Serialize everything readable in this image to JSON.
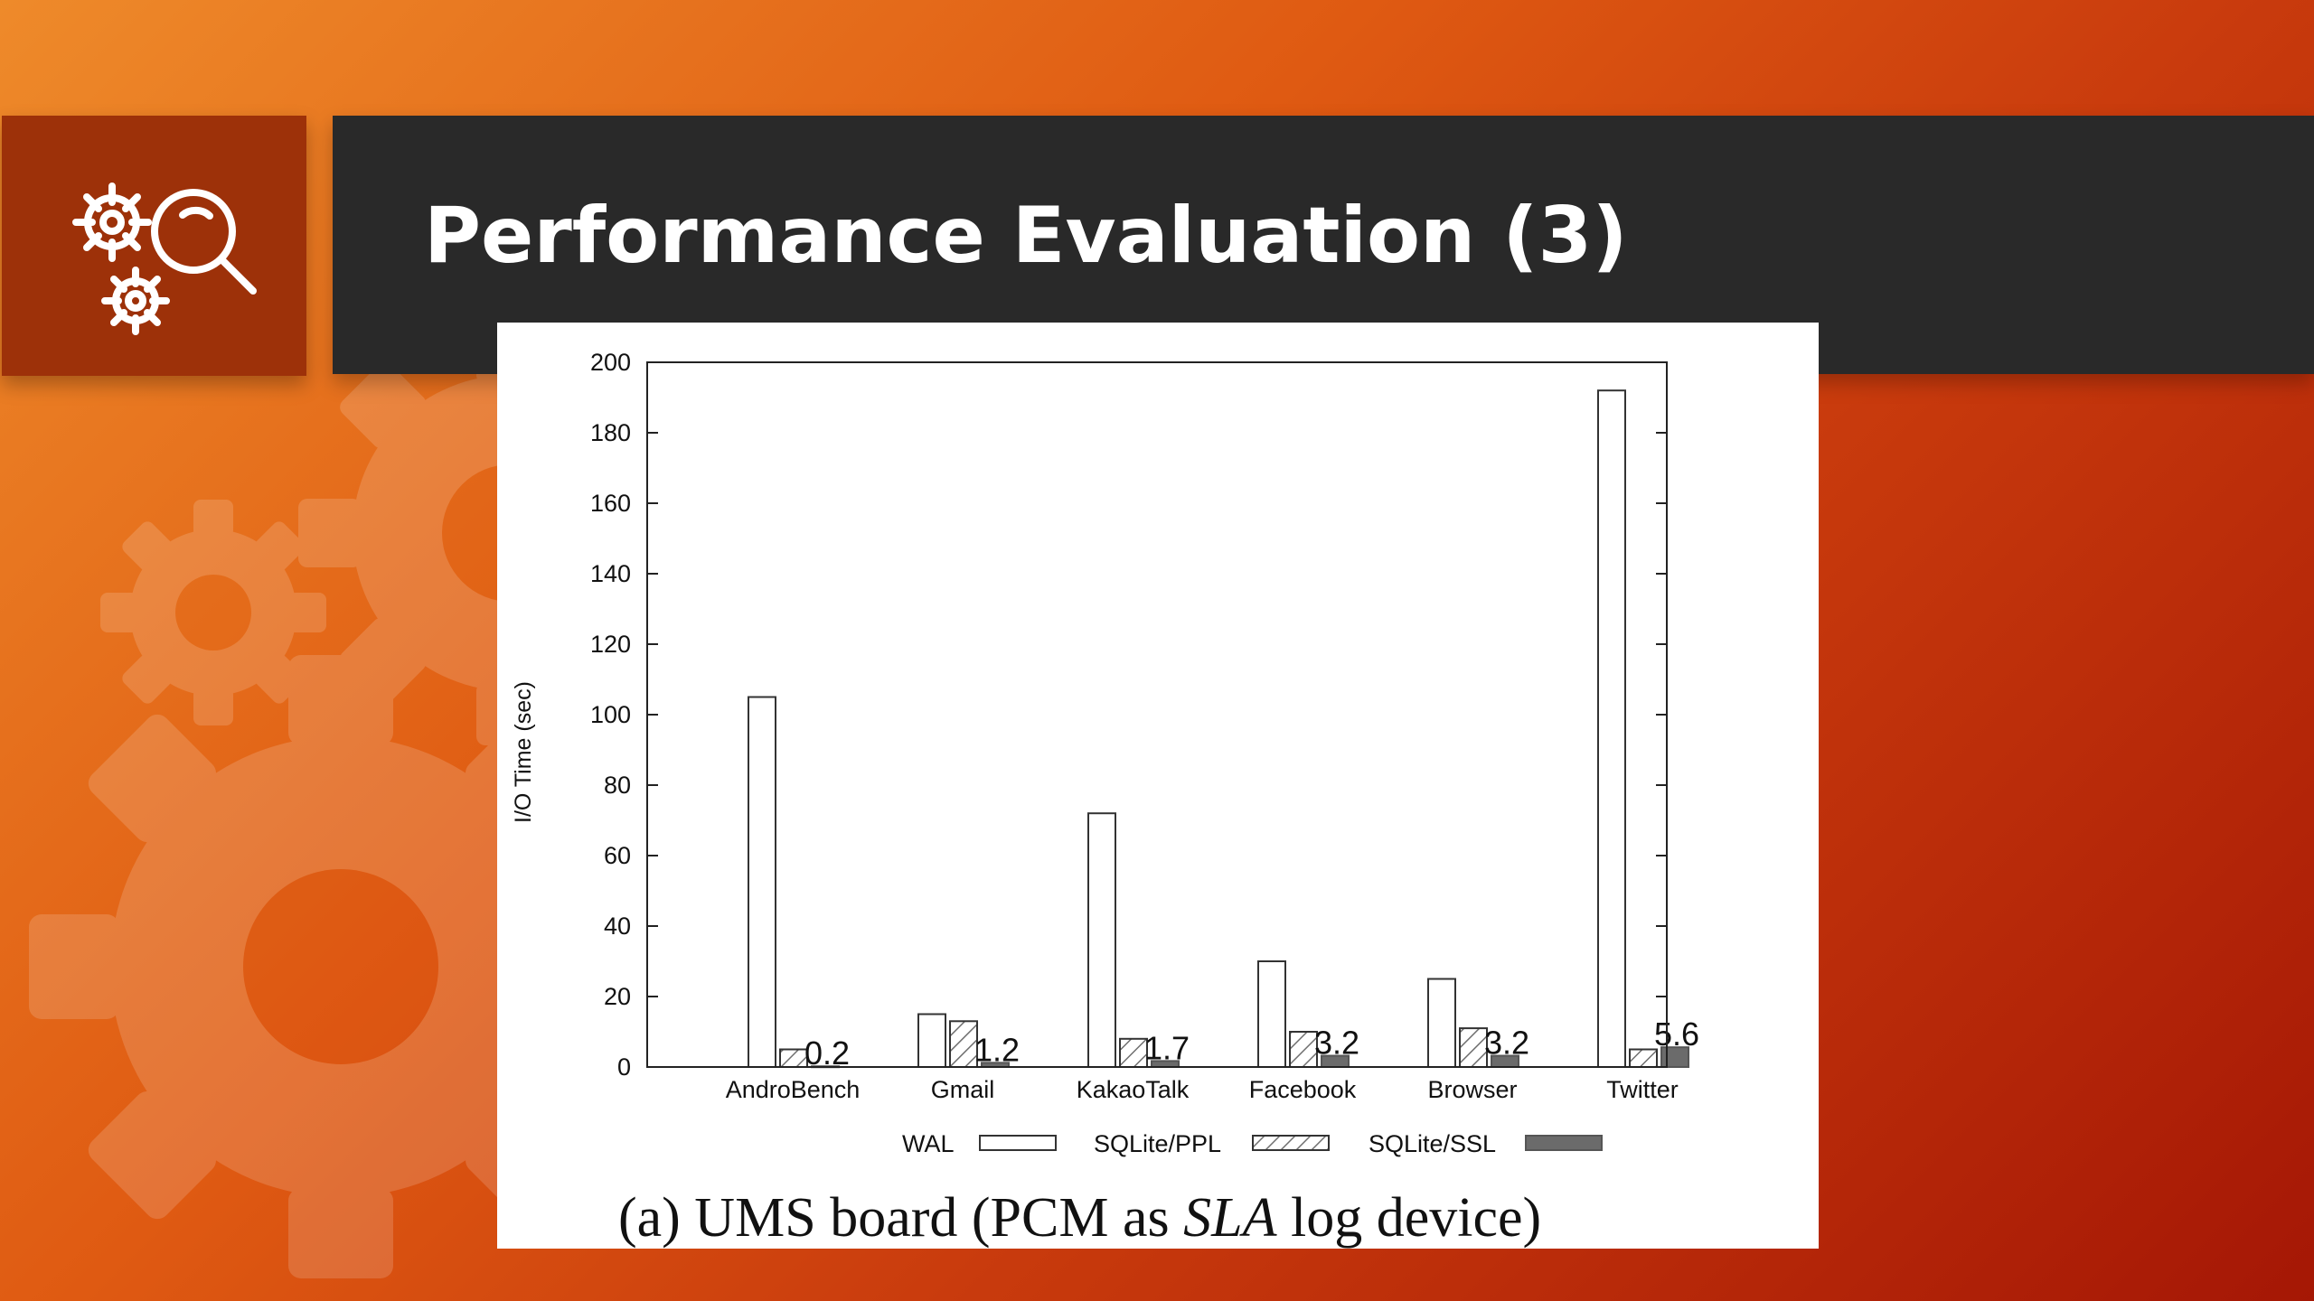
{
  "slide": {
    "title": "Performance Evaluation (3)",
    "icon": "gears-magnifier-icon",
    "accent_color": "#9d3109",
    "title_bar_color": "#292929"
  },
  "chart_data": {
    "type": "bar",
    "categories": [
      "AndroBench",
      "Gmail",
      "KakaoTalk",
      "Facebook",
      "Browser",
      "Twitter"
    ],
    "series": [
      {
        "name": "WAL",
        "values": [
          105,
          15,
          72,
          30,
          25,
          192
        ],
        "style": "white"
      },
      {
        "name": "SQLite/PPL",
        "values": [
          5,
          13,
          8,
          10,
          11,
          5
        ],
        "style": "hatched"
      },
      {
        "name": "SQLite/SSL",
        "values": [
          0.2,
          1.2,
          1.7,
          3.2,
          3.2,
          5.6
        ],
        "labels": [
          "0.2",
          "1.2",
          "1.7",
          "3.2",
          "3.2",
          "5.6"
        ],
        "style": "solid-gray"
      }
    ],
    "ylabel": "I/O Time (sec)",
    "ylim": [
      0,
      200
    ],
    "yticks": [
      0,
      20,
      40,
      60,
      80,
      100,
      120,
      140,
      160,
      180,
      200
    ],
    "legend_placement": "bottom",
    "caption": {
      "prefix": "(a) UMS board (PCM as ",
      "emphasis": "SLA",
      "suffix": " log device)"
    }
  }
}
